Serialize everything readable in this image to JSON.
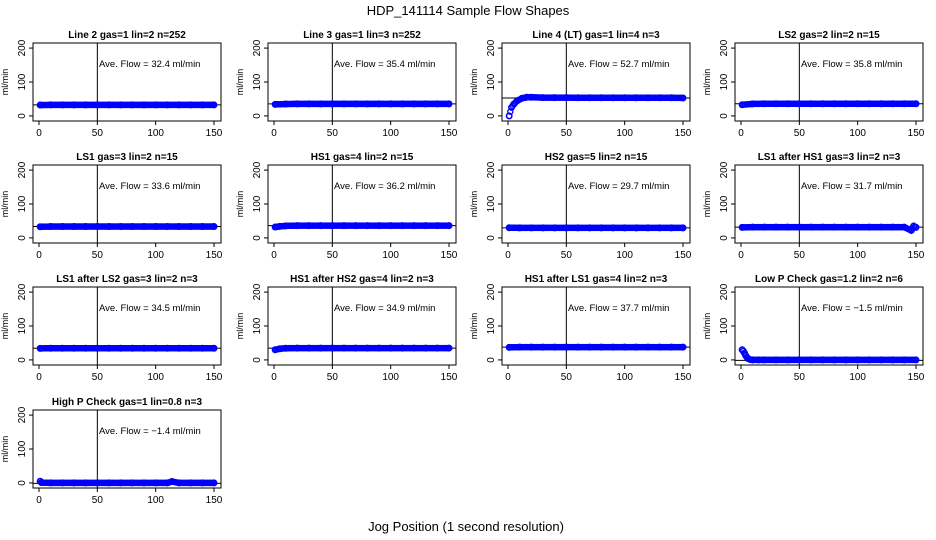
{
  "page": {
    "title": "HDP_141114  Sample Flow Shapes",
    "xlabel": "Jog Position (1 second resolution)"
  },
  "colors": {
    "points": "#0000ff",
    "axes": "#000000",
    "background": "#ffffff"
  },
  "chart_data": [
    {
      "type": "scatter",
      "title": "Line 2 gas=1 lin=2 n=252",
      "ylabel": "ml/min",
      "annotation": "Ave. Flow =  32.4  ml/min",
      "xlim": [
        0,
        150
      ],
      "ylim": [
        -15,
        215
      ],
      "xticks": [
        0,
        50,
        100,
        150
      ],
      "yticks": [
        0,
        100,
        200
      ],
      "vline_x": 50,
      "hline_y": 32.4,
      "x": [
        1,
        10,
        20,
        30,
        40,
        50,
        60,
        70,
        80,
        90,
        100,
        110,
        120,
        130,
        140,
        150
      ],
      "y": [
        32,
        32.5,
        32.4,
        32.4,
        32.4,
        32.4,
        32.4,
        32.4,
        32.4,
        32.4,
        32.4,
        32.4,
        32.4,
        32.4,
        32.4,
        32.4
      ]
    },
    {
      "type": "scatter",
      "title": "Line 3 gas=1 lin=3 n=252",
      "ylabel": "ml/min",
      "annotation": "Ave. Flow =  35.4  ml/min",
      "xlim": [
        0,
        150
      ],
      "ylim": [
        -15,
        215
      ],
      "xticks": [
        0,
        50,
        100,
        150
      ],
      "yticks": [
        0,
        100,
        200
      ],
      "vline_x": 50,
      "hline_y": 35.4,
      "x": [
        1,
        10,
        20,
        30,
        40,
        50,
        60,
        70,
        80,
        90,
        100,
        110,
        120,
        130,
        140,
        150
      ],
      "y": [
        34,
        35.2,
        35.4,
        35.4,
        35.4,
        35.4,
        35.4,
        35.4,
        35.4,
        35.4,
        35.4,
        35.4,
        35.4,
        35.4,
        35.4,
        35.4
      ]
    },
    {
      "type": "scatter",
      "title": "Line 4 (LT) gas=1 lin=4 n=3",
      "ylabel": "ml/min",
      "annotation": "Ave. Flow =  52.7  ml/min",
      "xlim": [
        0,
        150
      ],
      "ylim": [
        -15,
        215
      ],
      "xticks": [
        0,
        50,
        100,
        150
      ],
      "yticks": [
        0,
        100,
        200
      ],
      "vline_x": 50,
      "hline_y": 52.7,
      "x": [
        1,
        3,
        5,
        8,
        12,
        16,
        20,
        30,
        40,
        50,
        60,
        70,
        80,
        90,
        100,
        110,
        120,
        130,
        140,
        150
      ],
      "y": [
        0,
        25,
        35,
        45,
        52,
        55,
        55,
        54,
        54,
        54,
        53.5,
        53.5,
        53.5,
        53.5,
        53.5,
        53.5,
        53.5,
        53.5,
        53.5,
        53
      ]
    },
    {
      "type": "scatter",
      "title": "LS2 gas=2 lin=2 n=15",
      "ylabel": "ml/min",
      "annotation": "Ave. Flow =  35.8  ml/min",
      "xlim": [
        0,
        150
      ],
      "ylim": [
        -15,
        215
      ],
      "xticks": [
        0,
        50,
        100,
        150
      ],
      "yticks": [
        0,
        100,
        200
      ],
      "vline_x": 50,
      "hline_y": 35.8,
      "x": [
        1,
        10,
        20,
        30,
        40,
        50,
        60,
        70,
        80,
        90,
        100,
        110,
        120,
        130,
        140,
        150
      ],
      "y": [
        33,
        35.5,
        35.8,
        35.8,
        35.8,
        35.8,
        35.8,
        35.8,
        35.8,
        35.8,
        35.8,
        35.8,
        35.8,
        35.8,
        35.8,
        35.8
      ]
    },
    {
      "type": "scatter",
      "title": "LS1 gas=3 lin=2 n=15",
      "ylabel": "ml/min",
      "annotation": "Ave. Flow =  33.6  ml/min",
      "xlim": [
        0,
        150
      ],
      "ylim": [
        -15,
        215
      ],
      "xticks": [
        0,
        50,
        100,
        150
      ],
      "yticks": [
        0,
        100,
        200
      ],
      "vline_x": 50,
      "hline_y": 33.6,
      "x": [
        1,
        10,
        20,
        30,
        40,
        50,
        60,
        70,
        80,
        90,
        100,
        110,
        120,
        130,
        140,
        150
      ],
      "y": [
        33,
        33.6,
        33.6,
        33.6,
        33.6,
        33.6,
        33.6,
        33.6,
        33.6,
        33.6,
        33.6,
        33.6,
        33.6,
        33.6,
        33.6,
        33.6
      ]
    },
    {
      "type": "scatter",
      "title": "HS1 gas=4 lin=2 n=15",
      "ylabel": "ml/min",
      "annotation": "Ave. Flow =  36.2  ml/min",
      "xlim": [
        0,
        150
      ],
      "ylim": [
        -15,
        215
      ],
      "xticks": [
        0,
        50,
        100,
        150
      ],
      "yticks": [
        0,
        100,
        200
      ],
      "vline_x": 50,
      "hline_y": 36.2,
      "x": [
        1,
        5,
        10,
        20,
        30,
        40,
        50,
        60,
        70,
        80,
        90,
        100,
        110,
        120,
        130,
        140,
        150
      ],
      "y": [
        32,
        34,
        35.5,
        36.2,
        36.2,
        36.2,
        36.2,
        36.2,
        36.2,
        36.2,
        36.2,
        36.2,
        36.2,
        36.2,
        36.2,
        36.2,
        36.2
      ]
    },
    {
      "type": "scatter",
      "title": "HS2 gas=5 lin=2 n=15",
      "ylabel": "ml/min",
      "annotation": "Ave. Flow =  29.7  ml/min",
      "xlim": [
        0,
        150
      ],
      "ylim": [
        -15,
        215
      ],
      "xticks": [
        0,
        50,
        100,
        150
      ],
      "yticks": [
        0,
        100,
        200
      ],
      "vline_x": 50,
      "hline_y": 29.7,
      "x": [
        1,
        10,
        20,
        30,
        40,
        50,
        60,
        70,
        80,
        90,
        100,
        110,
        120,
        130,
        140,
        150
      ],
      "y": [
        30,
        29.7,
        29.7,
        29.7,
        29.7,
        29.7,
        29.7,
        29.7,
        29.7,
        29.7,
        29.7,
        29.7,
        29.7,
        29.7,
        29.7,
        29.7
      ]
    },
    {
      "type": "scatter",
      "title": "LS1 after HS1 gas=3 lin=2 n=3",
      "ylabel": "ml/min",
      "annotation": "Ave. Flow =  31.7  ml/min",
      "xlim": [
        0,
        150
      ],
      "ylim": [
        -15,
        215
      ],
      "xticks": [
        0,
        50,
        100,
        150
      ],
      "yticks": [
        0,
        100,
        200
      ],
      "vline_x": 50,
      "hline_y": 31.7,
      "x": [
        1,
        10,
        20,
        30,
        40,
        50,
        60,
        70,
        80,
        90,
        100,
        110,
        120,
        130,
        140,
        146,
        148,
        150
      ],
      "y": [
        31,
        31.7,
        31.7,
        31.7,
        31.7,
        31.7,
        31.7,
        31.7,
        31.7,
        31.7,
        31.7,
        31.7,
        31.7,
        31.7,
        31.7,
        22,
        35,
        31
      ]
    },
    {
      "type": "scatter",
      "title": "LS1 after LS2 gas=3 lin=2 n=3",
      "ylabel": "ml/min",
      "annotation": "Ave. Flow =  34.5  ml/min",
      "xlim": [
        0,
        150
      ],
      "ylim": [
        -15,
        215
      ],
      "xticks": [
        0,
        50,
        100,
        150
      ],
      "yticks": [
        0,
        100,
        200
      ],
      "vline_x": 50,
      "hline_y": 34.5,
      "x": [
        1,
        10,
        20,
        30,
        40,
        50,
        60,
        70,
        80,
        90,
        100,
        110,
        120,
        130,
        140,
        150
      ],
      "y": [
        34,
        34.5,
        34.5,
        34.5,
        34.5,
        34.5,
        34.5,
        34.5,
        34.5,
        34.5,
        34.5,
        34.5,
        34.5,
        34.5,
        34.5,
        34.5
      ]
    },
    {
      "type": "scatter",
      "title": "HS1 after HS2 gas=4 lin=2 n=3",
      "ylabel": "ml/min",
      "annotation": "Ave. Flow =  34.9  ml/min",
      "xlim": [
        0,
        150
      ],
      "ylim": [
        -15,
        215
      ],
      "xticks": [
        0,
        50,
        100,
        150
      ],
      "yticks": [
        0,
        100,
        200
      ],
      "vline_x": 50,
      "hline_y": 34.9,
      "x": [
        1,
        5,
        10,
        20,
        30,
        40,
        50,
        60,
        70,
        80,
        90,
        100,
        110,
        120,
        130,
        140,
        150
      ],
      "y": [
        30,
        33,
        34.5,
        34.9,
        34.9,
        34.9,
        34.9,
        34.9,
        34.9,
        34.9,
        34.9,
        34.9,
        34.9,
        34.9,
        34.9,
        34.9,
        34.9
      ]
    },
    {
      "type": "scatter",
      "title": "HS1 after LS1 gas=4 lin=2 n=3",
      "ylabel": "ml/min",
      "annotation": "Ave. Flow =  37.7  ml/min",
      "xlim": [
        0,
        150
      ],
      "ylim": [
        -15,
        215
      ],
      "xticks": [
        0,
        50,
        100,
        150
      ],
      "yticks": [
        0,
        100,
        200
      ],
      "vline_x": 50,
      "hline_y": 37.7,
      "x": [
        1,
        10,
        20,
        30,
        40,
        50,
        60,
        70,
        80,
        90,
        100,
        110,
        120,
        130,
        140,
        150
      ],
      "y": [
        37,
        37.7,
        37.7,
        37.7,
        37.7,
        37.7,
        37.7,
        37.7,
        37.7,
        37.7,
        37.7,
        37.7,
        37.7,
        37.7,
        37.7,
        37.7
      ]
    },
    {
      "type": "scatter",
      "title": "Low P Check gas=1.2 lin=2 n=6",
      "ylabel": "ml/min",
      "annotation": "Ave. Flow =  −1.5  ml/min",
      "xlim": [
        0,
        150
      ],
      "ylim": [
        -15,
        215
      ],
      "xticks": [
        0,
        50,
        100,
        150
      ],
      "yticks": [
        0,
        100,
        200
      ],
      "vline_x": 50,
      "hline_y": -1.5,
      "x": [
        1,
        2,
        3,
        4,
        5,
        6,
        8,
        10,
        15,
        20,
        30,
        40,
        50,
        60,
        70,
        80,
        90,
        100,
        110,
        120,
        130,
        140,
        150
      ],
      "y": [
        30,
        26,
        20,
        13,
        8,
        4,
        1,
        0,
        0,
        0,
        0,
        0,
        0,
        0,
        0,
        0,
        0,
        0,
        0,
        0,
        0,
        0,
        0
      ]
    },
    {
      "type": "scatter",
      "title": "High P Check gas=1 lin=0.8 n=3",
      "ylabel": "ml/min",
      "annotation": "Ave. Flow =  −1.4  ml/min",
      "xlim": [
        0,
        150
      ],
      "ylim": [
        -15,
        215
      ],
      "xticks": [
        0,
        50,
        100,
        150
      ],
      "yticks": [
        0,
        100,
        200
      ],
      "vline_x": 50,
      "hline_y": -1.4,
      "x": [
        1,
        2,
        10,
        20,
        30,
        40,
        50,
        60,
        70,
        80,
        90,
        100,
        110,
        114,
        120,
        130,
        140,
        150
      ],
      "y": [
        5,
        1,
        0,
        0,
        0,
        0,
        0,
        0,
        0,
        0,
        0,
        0,
        0,
        4,
        0,
        0,
        0,
        0
      ]
    }
  ]
}
